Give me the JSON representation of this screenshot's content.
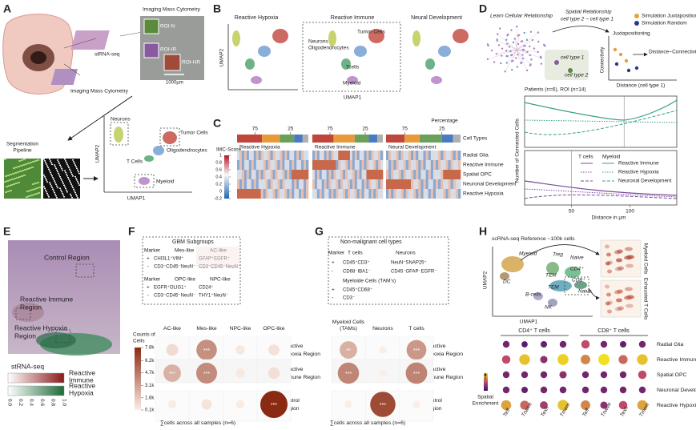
{
  "A": {
    "label": "A",
    "st_rna": "stRNA-seq",
    "imc_top": "Imaging Mass Cytometry",
    "imc_bottom": "Imaging Mass Cytometry",
    "rois": [
      "ROI-N",
      "ROI-IR",
      "ROI-HR"
    ],
    "scale": "1000µm",
    "segmentation": [
      "Segmentation",
      "Pipeline"
    ],
    "umap": {
      "y": "UMAP2",
      "x": "UMAP1",
      "clusters": [
        "Neurons",
        "Tumor Cells",
        "Oligodendrocytes",
        "T Cells",
        "Myeloid"
      ]
    }
  },
  "B": {
    "label": "B",
    "titles": [
      "Reactive Hypoxia",
      "Reactive Immune",
      "Neural Development"
    ],
    "y": "UMAP2",
    "x": "UMAP1",
    "clusters": [
      "Tumor Cells",
      "Neurons",
      "Oligodendrocytes",
      "Tcells",
      "Myeloid"
    ]
  },
  "C": {
    "label": "C",
    "percentage": "Percentage",
    "bar_ticks": [
      75,
      25
    ],
    "cell_types": "Cell Types",
    "score_title": "IMC-Score",
    "score_ticks": [
      1,
      0.8,
      0.6,
      0.4,
      0.2,
      0,
      -0.2
    ],
    "titles": [
      "Reactive Hypoxia",
      "Reactive Immune",
      "Neural Development"
    ],
    "rows": [
      "Radial Glia",
      "Reactive Immune",
      "Spatial OPC",
      "Neuronal Development",
      "Reactive Hypoxia"
    ]
  },
  "D": {
    "label": "D",
    "learn": "Learn Cellular Relationship",
    "spatial": "Spatial Relationship",
    "formula": "cell type 2 ~ cell type 1",
    "legend": [
      "Simulation Juxtaposition",
      "Simulation Random"
    ],
    "juxta": "Juxtapositioning",
    "cell1": "cell type 1",
    "cell2": "cell type 2",
    "connectivity": "Connectivity",
    "plateau": "Distance~Connectivity plateau",
    "distance": "Distance (cell type 1)",
    "plot": {
      "title": "Patients (n=6), ROI (n=14)",
      "y": "Number of Connected Cells",
      "x": "Distance in µm",
      "xlim": [
        10,
        140
      ],
      "xticks": [
        50,
        100
      ],
      "legend_head": [
        "T cells",
        "Myeloid"
      ],
      "series": [
        "Reactive Immune",
        "Reactive Hypoxia",
        "Neuronal Development"
      ]
    }
  },
  "E": {
    "label": "E",
    "regions": [
      [
        "Control Region"
      ],
      [
        "Reactive Immune",
        "Region"
      ],
      [
        "Reactive Hypoxia",
        "Region"
      ]
    ],
    "caption": "stRNA-seq",
    "legend": [
      [
        "Reactive",
        "Immune"
      ],
      [
        "Reactive",
        "Hypoxia"
      ]
    ],
    "ticks": [
      "0.0",
      "0.2",
      "0.4",
      "0.6",
      "0.8",
      "1.0"
    ]
  },
  "F": {
    "label": "F",
    "box": {
      "title": "GBM Subgroups",
      "marker": "Marker",
      "signs": [
        "+",
        "-"
      ],
      "groups": [
        {
          "name": "Mes-like",
          "markers": [
            "CHI3L1⁺VIM⁺",
            "CD3⁻CD45⁻NeuN⁻"
          ]
        },
        {
          "name": "AC-like",
          "markers": [
            "GFAP⁺EGFR⁺",
            "CD3⁻CD45⁻NeuN⁻"
          ]
        },
        {
          "name": "OPC-like",
          "markers": [
            "EGFR⁺OLIG1⁺",
            "CD3⁻CD45⁻NeuN⁻"
          ]
        },
        {
          "name": "NPC-like",
          "markers": [
            "CD24⁺",
            "THY1⁺NeuN⁻"
          ]
        }
      ]
    },
    "legend_title": [
      "Counts of",
      "Cells"
    ],
    "legend_ticks": [
      {
        "value": 7800,
        "label": "7.8k"
      },
      {
        "value": 6200,
        "label": "6.2k"
      },
      {
        "value": 4700,
        "label": "4.7k"
      },
      {
        "value": 3100,
        "label": "3.1k"
      },
      {
        "value": 1600,
        "label": "1.6k"
      },
      {
        "value": 100,
        "label": "0.1k"
      }
    ],
    "columns": [
      "AC-like",
      "Mes-like",
      "NPC-like",
      "OPC-like"
    ],
    "rows": [
      [
        "Reactive",
        "Hypoxia Region"
      ],
      [
        "Reactive",
        "Immune Region"
      ],
      [
        "Control",
        "Region"
      ]
    ],
    "counts": [
      [
        800,
        3800,
        300,
        600
      ],
      [
        2500,
        4000,
        300,
        700
      ],
      [
        200,
        500,
        200,
        7800
      ]
    ],
    "stars": [
      [
        null,
        "***",
        null,
        null
      ],
      [
        "***",
        "***",
        null,
        null
      ],
      [
        null,
        null,
        null,
        "***"
      ]
    ],
    "footnote": "∑cells across all samples (n=6)"
  },
  "G": {
    "label": "G",
    "box": {
      "title": "Non-malignant cell types",
      "marker": "Marker",
      "signs": [
        "+",
        "-",
        "+",
        "-"
      ],
      "tcells": "T cells",
      "tcell_markers": [
        "CD45⁺CD3⁺",
        "CD68⁻IBA1⁻"
      ],
      "neurons": "Neurons",
      "neuron_markers": [
        "NeuN⁺SNAP25⁺",
        "CD45⁻GFAP⁻EGFR⁻"
      ],
      "myeloid": "Myeloide Cells (TAM's)",
      "myeloid_markers": [
        "CD45⁺CD68⁺",
        "CD3⁻"
      ]
    },
    "columns": [
      [
        "Myeloid Cells",
        "(TAMs)"
      ],
      [
        "Neurons"
      ],
      [
        "T cells"
      ]
    ],
    "rows": [
      [
        "Reactive",
        "Hypoxia Region"
      ],
      [
        "Reactive",
        "Immune Region"
      ],
      [
        "Control",
        "Region"
      ]
    ],
    "counts": [
      [
        2500,
        100,
        3500
      ],
      [
        4200,
        100,
        4300
      ],
      [
        100,
        6500,
        100
      ]
    ],
    "stars": [
      [
        "**",
        null,
        "***"
      ],
      [
        "***",
        null,
        "***"
      ],
      [
        null,
        "***",
        null
      ]
    ],
    "footnote": "∑cells across all samples (n=6)"
  },
  "H": {
    "label": "H",
    "title": "scRNA-seq Reference ~100k cells",
    "clusters": [
      "Myeloid",
      "Treg",
      "Naive",
      "CD4⁺",
      "CD8⁺",
      "TEM",
      "TEM",
      "Naive",
      "DC",
      "B-cells",
      "NK"
    ],
    "y": "UMAP2",
    "x": "UMAP1",
    "maps": [
      "Myeloid Cells",
      "Exhausted T Cells"
    ],
    "groups": [
      "CD4⁺ T cells",
      "CD8⁺ T cells"
    ],
    "columns": [
      "Teff",
      "Tnaive",
      "Texh",
      "Tmem"
    ],
    "rows": [
      "Radial Glia",
      "Reactive Immune",
      "Spatial OPC",
      "Neuronal Development",
      "Reactive Hypoxia"
    ],
    "enrichment_label": [
      "Spatial",
      "Enrichment"
    ],
    "enrichment": [
      [
        0.2,
        0.1,
        0.15,
        0.2,
        0.5,
        0.2,
        0.15,
        0.2
      ],
      [
        0.5,
        0.9,
        0.3,
        0.95,
        0.7,
        1.0,
        0.6,
        0.9
      ],
      [
        0.2,
        0.2,
        0.2,
        0.3,
        0.2,
        0.2,
        0.2,
        0.5
      ],
      [
        0.2,
        0.15,
        0.2,
        0.2,
        0.2,
        0.2,
        0.2,
        0.2
      ],
      [
        0.8,
        0.6,
        0.4,
        0.9,
        0.7,
        0.3,
        0.5,
        0.8
      ]
    ]
  }
}
